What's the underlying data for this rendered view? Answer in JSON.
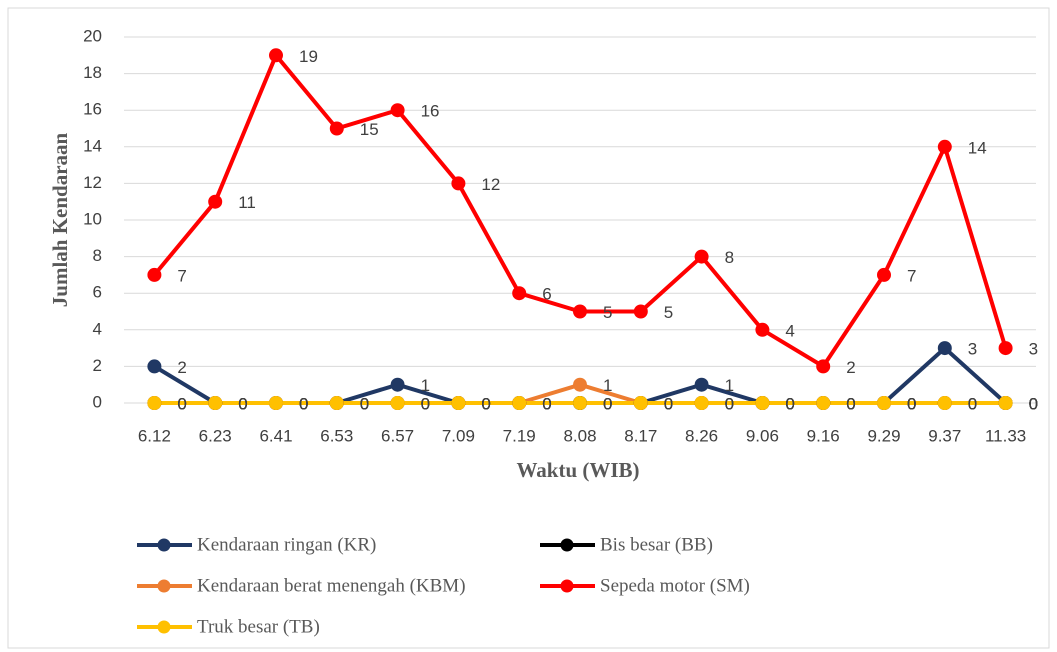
{
  "chart_data": {
    "type": "line",
    "x_label": "Waktu (WIB)",
    "y_label": "Jumlah Kendaraan",
    "categories": [
      "6.12",
      "6.23",
      "6.41",
      "6.53",
      "6.57",
      "7.09",
      "7.19",
      "8.08",
      "8.17",
      "8.26",
      "9.06",
      "9.16",
      "9.29",
      "9.37",
      "11.33"
    ],
    "series": [
      {
        "name": "Kendaraan ringan (KR)",
        "color": "#203864",
        "values": [
          2,
          0,
          0,
          0,
          1,
          0,
          0,
          0,
          0,
          1,
          0,
          0,
          0,
          3,
          0
        ]
      },
      {
        "name": "Bis besar (BB)",
        "color": "#000000",
        "values": [
          0,
          0,
          0,
          0,
          0,
          0,
          0,
          0,
          0,
          0,
          0,
          0,
          0,
          0,
          0
        ]
      },
      {
        "name": "Kendaraan berat menengah (KBM)",
        "color": "#ed7d31",
        "values": [
          0,
          0,
          0,
          0,
          0,
          0,
          0,
          1,
          0,
          0,
          0,
          0,
          0,
          0,
          0
        ]
      },
      {
        "name": "Sepeda motor (SM)",
        "color": "#ff0000",
        "values": [
          7,
          11,
          19,
          15,
          16,
          12,
          6,
          5,
          5,
          8,
          4,
          2,
          7,
          14,
          3
        ]
      },
      {
        "name": "Truk besar (TB)",
        "color": "#ffc000",
        "values": [
          0,
          0,
          0,
          0,
          0,
          0,
          0,
          0,
          0,
          0,
          0,
          0,
          0,
          0,
          0
        ]
      }
    ],
    "ylim": [
      0,
      20
    ],
    "yticks": [
      0,
      2,
      4,
      6,
      8,
      10,
      12,
      14,
      16,
      18,
      20
    ],
    "grid": true,
    "legend": "bottom"
  }
}
